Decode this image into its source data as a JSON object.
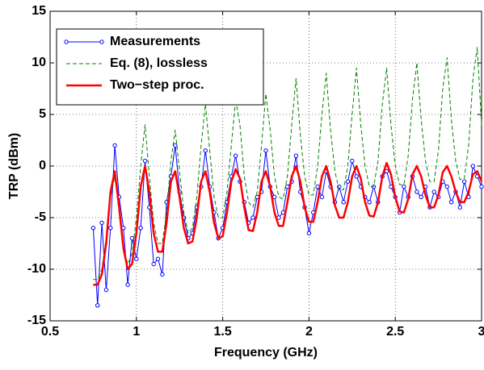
{
  "chart_data": {
    "type": "line",
    "xlabel": "Frequency (GHz)",
    "ylabel": "TRP (dBm)",
    "xlim": [
      0.5,
      3
    ],
    "ylim": [
      -15,
      15
    ],
    "xticks": [
      0.5,
      1,
      1.5,
      2,
      2.5,
      3
    ],
    "yticks": [
      -15,
      -10,
      -5,
      0,
      5,
      10,
      15
    ],
    "grid": true,
    "legend": "upper left",
    "x": [
      0.75,
      0.775,
      0.8,
      0.825,
      0.85,
      0.875,
      0.9,
      0.925,
      0.95,
      0.975,
      1.0,
      1.025,
      1.05,
      1.075,
      1.1,
      1.125,
      1.15,
      1.175,
      1.2,
      1.225,
      1.25,
      1.275,
      1.3,
      1.325,
      1.35,
      1.375,
      1.4,
      1.425,
      1.45,
      1.475,
      1.5,
      1.525,
      1.55,
      1.575,
      1.6,
      1.625,
      1.65,
      1.675,
      1.7,
      1.725,
      1.75,
      1.775,
      1.8,
      1.825,
      1.85,
      1.875,
      1.9,
      1.925,
      1.95,
      1.975,
      2.0,
      2.025,
      2.05,
      2.075,
      2.1,
      2.125,
      2.15,
      2.175,
      2.2,
      2.225,
      2.25,
      2.275,
      2.3,
      2.325,
      2.35,
      2.375,
      2.4,
      2.425,
      2.45,
      2.475,
      2.5,
      2.525,
      2.55,
      2.575,
      2.6,
      2.625,
      2.65,
      2.675,
      2.7,
      2.725,
      2.75,
      2.775,
      2.8,
      2.825,
      2.85,
      2.875,
      2.9,
      2.925,
      2.95,
      2.975,
      3.0
    ],
    "series": [
      {
        "name": "Measurements",
        "color": "#0000ff",
        "style": "marker",
        "values": [
          -6,
          -13.5,
          -5.5,
          -12,
          -6,
          2,
          -3,
          -6,
          -11.5,
          -7,
          -9,
          -6,
          0.5,
          -4,
          -9.5,
          -9,
          -10.5,
          -3.5,
          -1,
          2,
          -2.5,
          -5,
          -7,
          -6.5,
          -4,
          -2,
          1.5,
          -2,
          -4.5,
          -7,
          -6,
          -3.5,
          -1,
          1,
          -1.5,
          -3.5,
          -5.5,
          -5,
          -3,
          -2.5,
          1.5,
          -2,
          -3,
          -5,
          -4.5,
          -2,
          -1.5,
          1,
          -2.5,
          -4,
          -6.5,
          -4.5,
          -2,
          -3,
          -0.5,
          -2,
          -3.5,
          -2,
          -3.5,
          -1.5,
          0.5,
          -1,
          -2,
          -3,
          -3.5,
          -2,
          -3.5,
          -1,
          -0.5,
          -2,
          -3,
          -4.5,
          -2,
          -3,
          -1,
          -2.5,
          -3,
          -2,
          -4,
          -2.5,
          -3,
          -1.5,
          -2,
          -3.5,
          -2.5,
          -4,
          -1.5,
          -3,
          0,
          -1,
          -2
        ]
      },
      {
        "name": "Eq. (8), lossless",
        "color": "#008000",
        "style": "dashed",
        "values": [
          -11,
          -11,
          -10,
          -7,
          -3,
          -1,
          -4.5,
          -8,
          -9.5,
          -8.5,
          -5,
          0,
          4,
          -1,
          -5.5,
          -7.5,
          -7.5,
          -4.5,
          0.5,
          3.5,
          -0.5,
          -4.5,
          -6.5,
          -6,
          -3,
          2,
          6,
          1.5,
          -3,
          -5,
          -5,
          -2.5,
          2,
          6.5,
          4,
          -1,
          -3.5,
          -4,
          -2.5,
          2,
          7,
          3.5,
          -1,
          -3,
          -3.2,
          -1,
          4,
          8.5,
          3,
          -1,
          -2.8,
          -2.8,
          0,
          5,
          9,
          3.5,
          -0.5,
          -2.3,
          -2.3,
          0,
          5,
          9.5,
          4,
          0,
          -2,
          -2,
          0.5,
          6,
          9.5,
          4,
          0,
          -1.8,
          -1.8,
          1,
          6.5,
          10,
          4.5,
          0.5,
          -1.5,
          -1.5,
          1.5,
          7.5,
          10.5,
          4.5,
          0.5,
          -1.3,
          -1.2,
          2,
          8.5,
          11.5,
          4
        ]
      },
      {
        "name": "Two−step proc.",
        "color": "#ff0000",
        "style": "thick",
        "values": [
          -11.5,
          -11.5,
          -10.5,
          -7.5,
          -2.5,
          -0.5,
          -4,
          -8,
          -10,
          -9.5,
          -6.5,
          -2,
          0,
          -2.5,
          -6.5,
          -8.3,
          -8.3,
          -5.5,
          -1.5,
          -0.5,
          -3,
          -6,
          -7.5,
          -7.3,
          -5,
          -1.5,
          -0.5,
          -2.5,
          -5.5,
          -7,
          -6.8,
          -4.5,
          -1.5,
          -0.3,
          -1.2,
          -4,
          -6.2,
          -6.3,
          -4.5,
          -1.5,
          -0.5,
          -2,
          -4.5,
          -5.8,
          -5.8,
          -3.5,
          -1,
          0,
          -1.5,
          -4,
          -5.4,
          -5.4,
          -3.5,
          -1,
          0,
          -1.5,
          -3.8,
          -5,
          -5,
          -3.5,
          -1,
          0,
          -1.2,
          -3.5,
          -4.8,
          -4.9,
          -3.5,
          -1,
          0.3,
          -0.8,
          -3,
          -4.4,
          -4.5,
          -3.2,
          -0.8,
          0,
          -1,
          -2.8,
          -4,
          -4,
          -2.8,
          -0.6,
          0,
          -1,
          -2.5,
          -3.5,
          -3.5,
          -2.5,
          -0.8,
          -0.5,
          -1.5
        ]
      }
    ]
  }
}
